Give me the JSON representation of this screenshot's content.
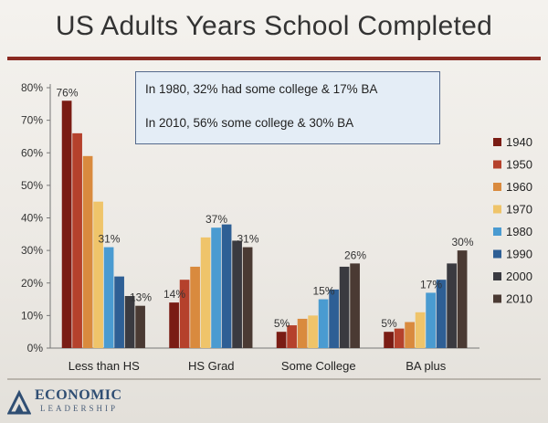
{
  "slide": {
    "title": "US Adults Years School Completed",
    "callout": [
      "In 1980, 32% had some college & 17% BA",
      "In 2010, 56% some college & 30% BA"
    ],
    "logo": {
      "name": "ECONOMIC",
      "sub": "LEADERSHIP"
    }
  },
  "chart_data": {
    "type": "bar",
    "categories": [
      "Less than HS",
      "HS Grad",
      "Some College",
      "BA plus"
    ],
    "series": [
      {
        "name": "1940",
        "color": "#7a1c14",
        "values": [
          76,
          14,
          5,
          5
        ]
      },
      {
        "name": "1950",
        "color": "#b5412c",
        "values": [
          66,
          21,
          7,
          6
        ]
      },
      {
        "name": "1960",
        "color": "#d98a3e",
        "values": [
          59,
          25,
          9,
          8
        ]
      },
      {
        "name": "1970",
        "color": "#efc46a",
        "values": [
          45,
          34,
          10,
          11
        ]
      },
      {
        "name": "1980",
        "color": "#4a9bd1",
        "values": [
          31,
          37,
          15,
          17
        ]
      },
      {
        "name": "1990",
        "color": "#2e5f95",
        "values": [
          22,
          38,
          18,
          21
        ]
      },
      {
        "name": "2000",
        "color": "#3a3a40",
        "values": [
          16,
          33,
          25,
          26
        ]
      },
      {
        "name": "2010",
        "color": "#4a3a33",
        "values": [
          13,
          31,
          26,
          30
        ]
      }
    ],
    "data_labels": [
      {
        "category": 0,
        "series": 0,
        "text": "76%"
      },
      {
        "category": 0,
        "series": 4,
        "text": "31%"
      },
      {
        "category": 0,
        "series": 7,
        "text": "13%"
      },
      {
        "category": 1,
        "series": 0,
        "text": "14%"
      },
      {
        "category": 1,
        "series": 4,
        "text": "37%"
      },
      {
        "category": 1,
        "series": 7,
        "text": "31%"
      },
      {
        "category": 2,
        "series": 0,
        "text": "5%"
      },
      {
        "category": 2,
        "series": 4,
        "text": "15%"
      },
      {
        "category": 2,
        "series": 7,
        "text": "26%"
      },
      {
        "category": 3,
        "series": 0,
        "text": "5%"
      },
      {
        "category": 3,
        "series": 4,
        "text": "17%"
      },
      {
        "category": 3,
        "series": 7,
        "text": "30%"
      }
    ],
    "yticks": [
      "0%",
      "10%",
      "20%",
      "30%",
      "40%",
      "50%",
      "60%",
      "70%",
      "80%"
    ],
    "ylim": [
      0,
      80
    ],
    "legend_position": "right",
    "grid": false
  }
}
